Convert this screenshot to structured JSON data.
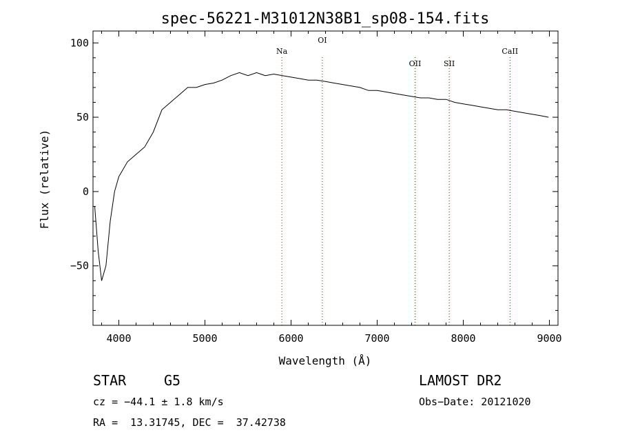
{
  "chart_data": {
    "type": "line",
    "title": "spec-56221-M31012N38B1_sp08-154.fits",
    "xlabel": "Wavelength (Å)",
    "ylabel": "Flux (relative)",
    "xlim": [
      3700,
      9100
    ],
    "ylim": [
      -90,
      108
    ],
    "xticks": [
      4000,
      5000,
      6000,
      7000,
      8000,
      9000
    ],
    "yticks": [
      -50,
      0,
      50,
      100
    ],
    "grid": false,
    "line_color": "#000000",
    "marker_color": "#cc0000",
    "series": [
      {
        "x": [
          3720,
          3760,
          3800,
          3850,
          3900,
          3950,
          4000,
          4100,
          4200,
          4300,
          4400,
          4500,
          4600,
          4700,
          4800,
          4900,
          5000,
          5100,
          5200,
          5300,
          5400,
          5500,
          5600,
          5700,
          5800,
          5900,
          6000,
          6100,
          6200,
          6300,
          6400,
          6500,
          6600,
          6700,
          6800,
          6900,
          7000,
          7100,
          7200,
          7300,
          7400,
          7500,
          7600,
          7700,
          7800,
          7900,
          8000,
          8100,
          8200,
          8300,
          8400,
          8500,
          8600,
          8700,
          8800,
          8900,
          8990
        ],
        "y": [
          -10,
          -40,
          -60,
          -50,
          -20,
          0,
          10,
          20,
          25,
          30,
          40,
          55,
          60,
          65,
          70,
          70,
          72,
          73,
          75,
          78,
          80,
          78,
          80,
          78,
          79,
          78,
          77,
          76,
          75,
          75,
          74,
          73,
          72,
          71,
          70,
          68,
          68,
          67,
          66,
          65,
          64,
          63,
          63,
          62,
          62,
          60,
          59,
          58,
          57,
          56,
          55,
          55,
          54,
          53,
          52,
          51,
          50
        ]
      }
    ],
    "line_markers": [
      {
        "label": "Na",
        "x": 5893
      },
      {
        "label": "OI",
        "x": 6363
      },
      {
        "label": "OII",
        "x": 7440
      },
      {
        "label": "SII",
        "x": 7837
      },
      {
        "label": "CaII",
        "x": 8542
      }
    ]
  },
  "info": {
    "object_type": "STAR",
    "subclass": "G5",
    "survey": "LAMOST DR2",
    "cz": "cz = −44.1 ± 1.8 km/s",
    "obs_date": "Obs−Date: 20121020",
    "coords": "RA =  13.31745, DEC =  37.42738"
  }
}
